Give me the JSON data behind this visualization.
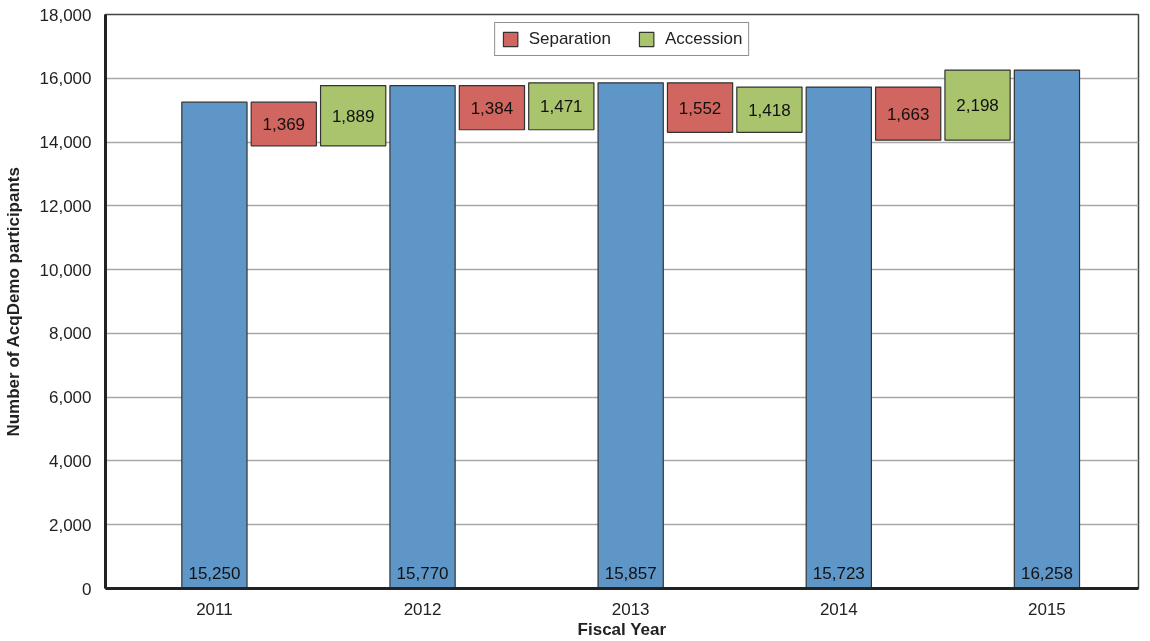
{
  "chart_data": {
    "type": "bar",
    "xlabel": "Fiscal Year",
    "ylabel": "Number of AcqDemo participants",
    "categories": [
      "2011",
      null,
      null,
      "2012",
      null,
      null,
      "2013",
      null,
      null,
      "2014",
      null,
      null,
      "2015"
    ],
    "series": [
      {
        "color": "#5f96c8",
        "values": [
          15250,
          null,
          null,
          15770,
          null,
          null,
          15857,
          null,
          null,
          15723,
          null,
          null,
          16258
        ],
        "value_labels": [
          "15,250",
          null,
          null,
          "15,770",
          null,
          null,
          "15,857",
          null,
          null,
          "15,723",
          null,
          null,
          "16,258"
        ]
      },
      {
        "name": "Separation",
        "color": "#d0665f",
        "values": [
          null,
          1369,
          null,
          null,
          1384,
          null,
          null,
          1552,
          null,
          null,
          1663,
          null,
          null
        ],
        "base": [
          null,
          13881,
          null,
          null,
          14386,
          null,
          null,
          14305,
          null,
          null,
          14060,
          null,
          null
        ],
        "value_labels": [
          null,
          "1,369",
          null,
          null,
          "1,384",
          null,
          null,
          "1,552",
          null,
          null,
          "1,663",
          null,
          null
        ]
      },
      {
        "name": "Accession",
        "color": "#a9c46c",
        "values": [
          null,
          null,
          1889,
          null,
          null,
          1471,
          null,
          null,
          1418,
          null,
          null,
          2198,
          null
        ],
        "base": [
          null,
          null,
          13881,
          null,
          null,
          14386,
          null,
          null,
          14305,
          null,
          null,
          14060,
          null
        ],
        "value_labels": [
          null,
          null,
          "1,889",
          null,
          null,
          "1,471",
          null,
          null,
          "1,418",
          null,
          null,
          "2,198",
          null
        ]
      }
    ],
    "ylim": [
      0,
      18000
    ],
    "yticks": [
      0,
      {
        "value": 2000,
        "label": "2,000"
      },
      {
        "value": 4000,
        "label": "4,000"
      },
      {
        "value": 6000,
        "label": "6,000"
      },
      {
        "value": 8000,
        "label": "8,000"
      },
      {
        "value": 10000,
        "label": "10,000"
      },
      {
        "value": 12000,
        "label": "12,000"
      },
      {
        "value": 14000,
        "label": "14,000"
      },
      {
        "value": 16000,
        "label": "16,000"
      },
      {
        "value": 18000,
        "label": "18,000"
      }
    ],
    "grid": "y",
    "legend": "top"
  }
}
